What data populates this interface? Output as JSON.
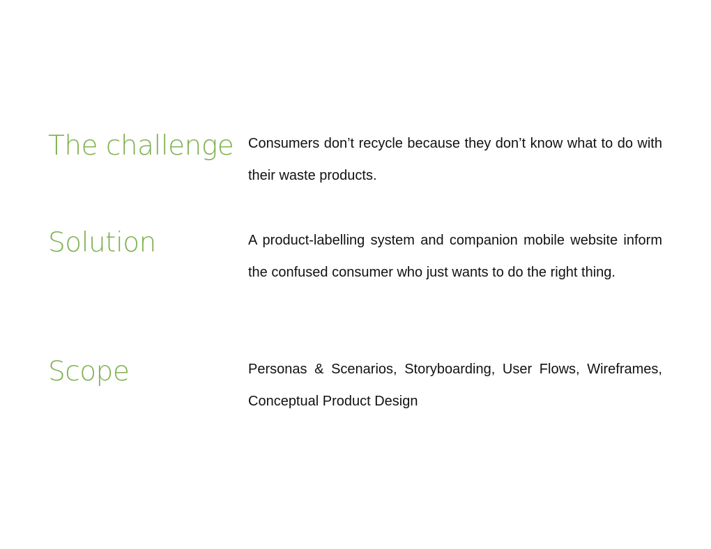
{
  "sections": [
    {
      "heading": "The challenge",
      "body": "Consumers don’t recycle because they don’t know what to do with their waste products."
    },
    {
      "heading": "Solution",
      "body": "A product-labelling system and companion mobile website inform the confused consumer who just wants to do the right thing."
    },
    {
      "heading": "Scope",
      "body": "Personas & Scenarios, Storyboarding, User Flows, Wireframes, Conceptual Product Design"
    }
  ],
  "colors": {
    "heading": "#7eb04f",
    "body_text": "#111111",
    "background": "#ffffff"
  }
}
